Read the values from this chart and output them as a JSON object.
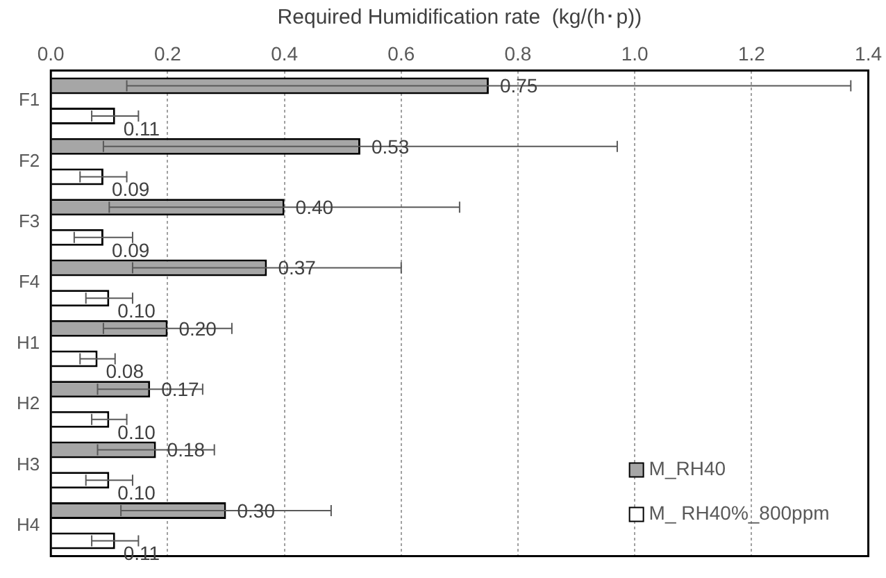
{
  "chart_data": {
    "type": "bar",
    "orientation": "horizontal",
    "xlabel": "Required Humidification rate  (kg/(h･p))",
    "categories": [
      "F1",
      "F2",
      "F3",
      "F4",
      "H1",
      "H2",
      "H3",
      "H4"
    ],
    "series": [
      {
        "name": "M_RH40",
        "color": "#a6a6a6",
        "values": [
          0.75,
          0.53,
          0.4,
          0.37,
          0.2,
          0.17,
          0.18,
          0.3
        ],
        "errors": [
          0.62,
          0.44,
          0.3,
          0.23,
          0.11,
          0.09,
          0.1,
          0.18
        ],
        "value_labels": [
          "0.75",
          "0.53",
          "0.40",
          "0.37",
          "0.20",
          "0.17",
          "0.18",
          "0.30"
        ]
      },
      {
        "name": "M_ RH40%_800ppm",
        "color": "#ffffff",
        "values": [
          0.11,
          0.09,
          0.09,
          0.1,
          0.08,
          0.1,
          0.1,
          0.11
        ],
        "errors": [
          0.04,
          0.04,
          0.05,
          0.04,
          0.03,
          0.03,
          0.04,
          0.04
        ],
        "value_labels": [
          "0.11",
          "0.09",
          "0.09",
          "0.10",
          "0.08",
          "0.10",
          "0.10",
          "0.11"
        ]
      }
    ],
    "xlim": [
      0,
      1.4
    ],
    "xticks": [
      {
        "value": 0,
        "label": "0.0"
      },
      {
        "value": 0.2,
        "label": "0.2"
      },
      {
        "value": 0.4,
        "label": "0.4"
      },
      {
        "value": 0.6,
        "label": "0.6"
      },
      {
        "value": 0.8,
        "label": "0.8"
      },
      {
        "value": 1,
        "label": "1.0"
      },
      {
        "value": 1.2,
        "label": "1.2"
      },
      {
        "value": 1.4,
        "label": "1.4"
      }
    ],
    "grid": "x",
    "legend": "bottom right"
  }
}
